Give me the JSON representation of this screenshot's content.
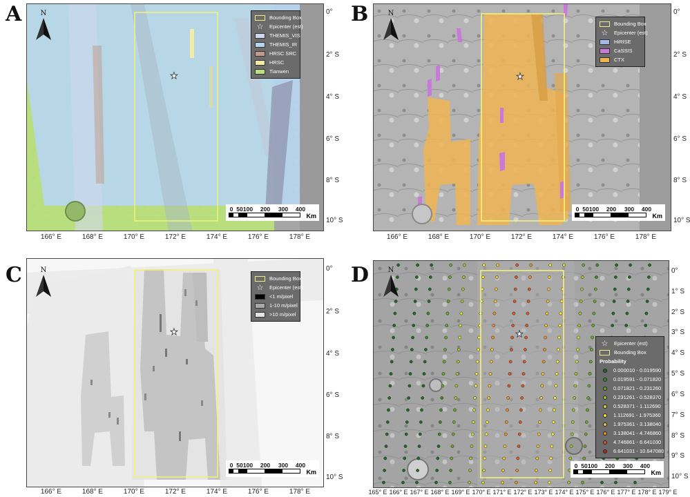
{
  "panels": [
    {
      "letter": "A",
      "legend": {
        "items": [
          {
            "kind": "box",
            "label": "Bounding Box",
            "color": "#eeee88"
          },
          {
            "kind": "star",
            "label": "Epicenter (est)"
          },
          {
            "kind": "swatch",
            "label": "THEMIS_VIS",
            "color": "#cfd8ee"
          },
          {
            "kind": "swatch",
            "label": "THEMIS_IR",
            "color": "#b6d6f0"
          },
          {
            "kind": "swatch",
            "label": "HRSC SRC",
            "color": "#c19a88"
          },
          {
            "kind": "swatch",
            "label": "HRSC",
            "color": "#f2eca8"
          },
          {
            "kind": "swatch",
            "label": "Tianwen",
            "color": "#b9e07a"
          }
        ]
      }
    },
    {
      "letter": "B",
      "legend": {
        "items": [
          {
            "kind": "box",
            "label": "Bounding Box",
            "color": "#eeee88"
          },
          {
            "kind": "star",
            "label": "Epicenter (est)"
          },
          {
            "kind": "swatch",
            "label": "HiRISE",
            "color": "#a5b8e6"
          },
          {
            "kind": "swatch",
            "label": "CaSSIS",
            "color": "#c77ad8"
          },
          {
            "kind": "swatch",
            "label": "CTX",
            "color": "#f0b552"
          }
        ]
      }
    },
    {
      "letter": "C",
      "legend": {
        "items": [
          {
            "kind": "box",
            "label": "Bounding Box",
            "color": "#eeee88"
          },
          {
            "kind": "star",
            "label": "Epicenter (est)"
          },
          {
            "kind": "swatch",
            "label": "<1 m/pixel",
            "color": "#000000"
          },
          {
            "kind": "swatch",
            "label": "1-10 m/pixel",
            "color": "#a8a8a8"
          },
          {
            "kind": "swatch",
            "label": ">10 m/pixel",
            "color": "#e4e4e4"
          }
        ]
      }
    },
    {
      "letter": "D",
      "legend": {
        "items": [
          {
            "kind": "star",
            "label": "Epicenter (est)"
          },
          {
            "kind": "box",
            "label": "Bounding Box",
            "color": "#eeee88"
          }
        ],
        "heading": "Probability",
        "classes": [
          {
            "label": "0.000010 - 0.019590",
            "color": "#1f6b1f"
          },
          {
            "label": "0.019591 - 0.071820",
            "color": "#3c8a23"
          },
          {
            "label": "0.071821 - 0.231260",
            "color": "#69a52a"
          },
          {
            "label": "0.231261 - 0.528370",
            "color": "#9dc232"
          },
          {
            "label": "0.528371 - 1.112690",
            "color": "#d1dc3c"
          },
          {
            "label": "1.112691 - 1.975360",
            "color": "#f2e83c"
          },
          {
            "label": "1.975361 - 3.138040",
            "color": "#f2c232"
          },
          {
            "label": "3.138041 - 4.746860",
            "color": "#e8902a"
          },
          {
            "label": "4.746861 - 6.641030",
            "color": "#d65a22"
          },
          {
            "label": "6.641031 - 10.647080",
            "color": "#c0281c"
          }
        ]
      }
    }
  ],
  "north_label": "N",
  "scale": {
    "ticks": [
      "0",
      "50",
      "100",
      "200",
      "300",
      "400"
    ],
    "unit": "Km"
  },
  "lat_labels": [
    "0°",
    "2° S",
    "4° S",
    "6° S",
    "8° S",
    "10° S"
  ],
  "lon_labels": [
    "166° E",
    "168° E",
    "170° E",
    "172° E",
    "174° E",
    "176° E",
    "178° E"
  ],
  "lat_labels_d": [
    "0°",
    "1° S",
    "2° S",
    "3° S",
    "4° S",
    "5° S",
    "6° S",
    "7° S",
    "8° S",
    "9° S",
    "10° S"
  ],
  "lon_labels_d": [
    "165° E",
    "166° E",
    "167° E",
    "168° E",
    "169° E",
    "170° E",
    "171° E",
    "172° E",
    "173° E",
    "174° E",
    "175° E",
    "176° E",
    "177° E",
    "178° E",
    "179° E"
  ],
  "colors": {
    "bounding_box": "#f2f27a",
    "terrain_dark": "#8a8a8a",
    "terrain_light": "#c9c9c9"
  }
}
